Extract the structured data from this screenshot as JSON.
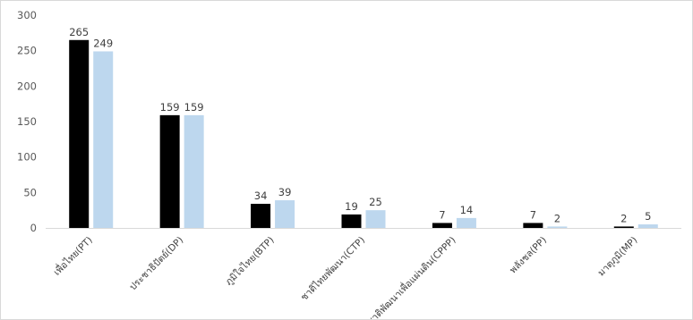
{
  "chart_data": {
    "type": "bar",
    "title": "",
    "xlabel": "",
    "ylabel": "",
    "ylim": [
      0,
      300
    ],
    "yticks": [
      0,
      50,
      100,
      150,
      200,
      250,
      300
    ],
    "grid": false,
    "legend": "none",
    "categories": [
      "เพื่อไทย(PT)",
      "ประชาธิปัตย์(DP)",
      "ภูมิใจไทย(BTP)",
      "ชาติไทยพัฒนา(CTP)",
      "ชาติพัฒนาเพื่อแผ่นดิน(CPPP)",
      "พลังชล(PP)",
      "มาตุภูมิ(MP)"
    ],
    "series": [
      {
        "values": [
          265,
          159,
          34,
          19,
          7,
          7,
          2
        ],
        "color": "#000000"
      },
      {
        "values": [
          249,
          159,
          39,
          25,
          14,
          2,
          5
        ],
        "color": "#bdd7ee"
      }
    ]
  }
}
